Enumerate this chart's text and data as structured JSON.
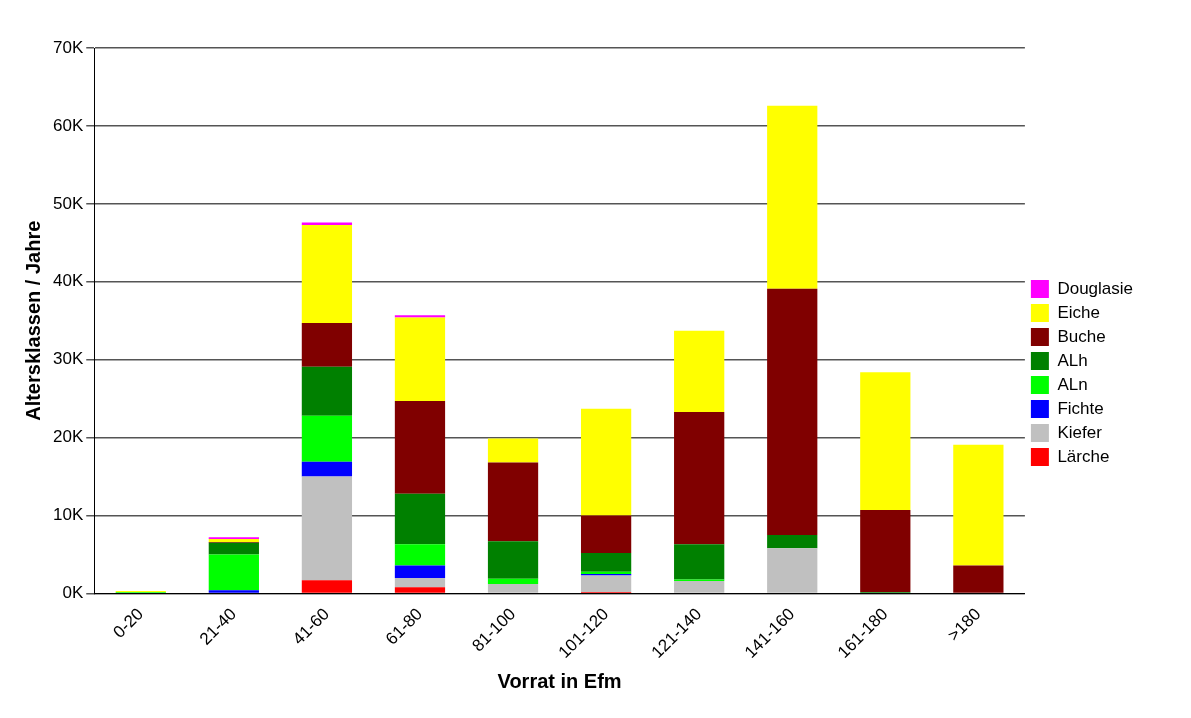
{
  "chart_data": {
    "type": "bar",
    "stacked": true,
    "xlabel": "Vorrat in Efm",
    "ylabel": "Altersklassen / Jahre",
    "categories": [
      "0-20",
      "21-40",
      "41-60",
      "61-80",
      "81-100",
      "101-120",
      "121-140",
      "141-160",
      "161-180",
      ">180"
    ],
    "series": [
      {
        "name": "Lärche",
        "color": "#ff0000",
        "values": [
          0,
          null,
          1.7,
          0.8,
          null,
          0.2,
          null,
          null,
          0,
          0
        ]
      },
      {
        "name": "Kiefer",
        "color": "#c0c0c0",
        "values": [
          0,
          0.1,
          13.3,
          1.2,
          1.2,
          2.1,
          1.6,
          5.8,
          0,
          0
        ]
      },
      {
        "name": "Fichte",
        "color": "#0000ff",
        "values": [
          0,
          0.3,
          1.9,
          1.6,
          0,
          0.2,
          0,
          0,
          0,
          0
        ]
      },
      {
        "name": "ALn",
        "color": "#00ff00",
        "values": [
          0.2,
          4.6,
          5.9,
          2.7,
          0.7,
          0.3,
          0.2,
          0,
          0,
          0
        ]
      },
      {
        "name": "ALh",
        "color": "#008000",
        "values": [
          0,
          1.5,
          6.3,
          6.5,
          4.8,
          2.4,
          4.5,
          1.7,
          0.2,
          0
        ]
      },
      {
        "name": "Buche",
        "color": "#800000",
        "values": [
          0,
          0.1,
          5.6,
          11.9,
          10.1,
          4.8,
          17,
          31.6,
          10.5,
          3.6
        ]
      },
      {
        "name": "Eiche",
        "color": "#ffff00",
        "values": [
          0.1,
          0.4,
          12.6,
          10.7,
          3.1,
          13.7,
          10.4,
          23.5,
          17.7,
          15.5
        ]
      },
      {
        "name": "Douglasie",
        "color": "#ff00ff",
        "values": [
          0,
          0.2,
          0.3,
          0.3,
          0,
          0,
          0,
          0,
          0,
          0
        ]
      }
    ],
    "ylim": [
      0,
      70
    ],
    "yticks": [
      {
        "value": 0,
        "label": "0K"
      },
      {
        "value": 10,
        "label": "10K"
      },
      {
        "value": 20,
        "label": "20K"
      },
      {
        "value": 30,
        "label": "30K"
      },
      {
        "value": 40,
        "label": "40K"
      },
      {
        "value": 50,
        "label": "50K"
      },
      {
        "value": 60,
        "label": "60K"
      },
      {
        "value": 70,
        "label": "70K"
      }
    ],
    "grid": "y",
    "legend": "right"
  }
}
